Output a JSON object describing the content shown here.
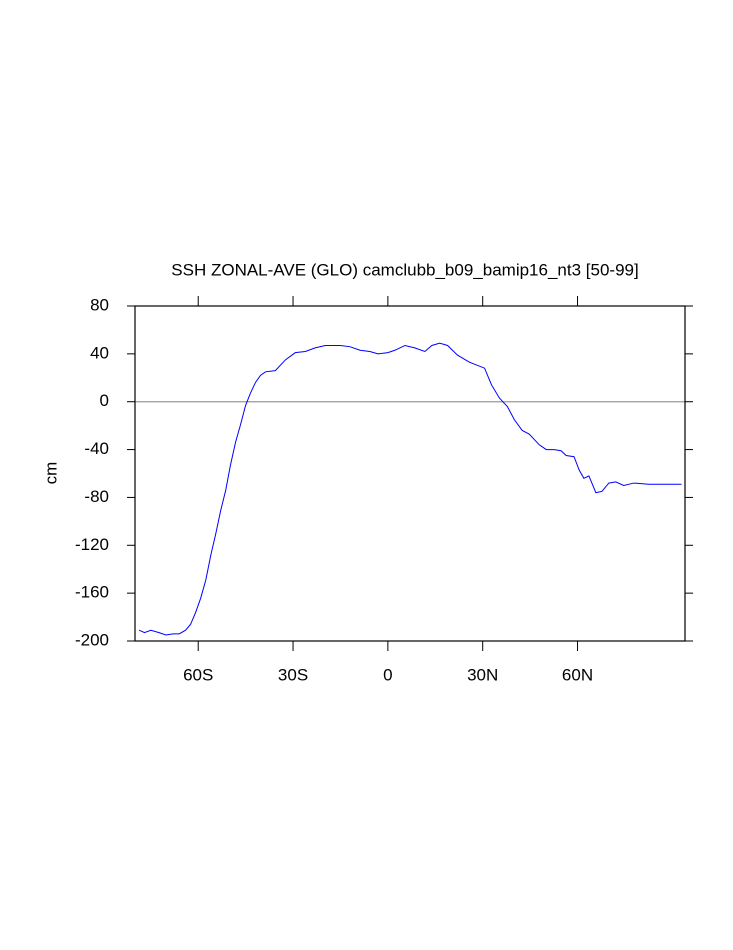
{
  "chart_data": {
    "type": "line",
    "title": "SSH ZONAL-AVE (GLO) camclubb_b09_bamip16_nt3 [50-99]",
    "ylabel": "cm",
    "x": [
      -78.7,
      -77,
      -75,
      -72.4,
      -70.2,
      -68,
      -66,
      -64,
      -62.4,
      -60.8,
      -59.2,
      -57.6,
      -56,
      -54.5,
      -52.9,
      -51.3,
      -49.8,
      -48.2,
      -46.6,
      -45,
      -43.5,
      -41.9,
      -40.3,
      -38.7,
      -35.6,
      -32.4,
      -29.3,
      -26.1,
      -23,
      -19.8,
      -15.1,
      -12,
      -8.8,
      -5.7,
      -3.1,
      0,
      2.2,
      5.4,
      8.5,
      11.7,
      13.9,
      16.4,
      18.9,
      22,
      25.8,
      30.6,
      32.8,
      35.3,
      37.8,
      40,
      42.5,
      44.7,
      47.9,
      50.1,
      52.6,
      54.8,
      56.4,
      58.9,
      60.5,
      62,
      63.6,
      65.8,
      67.7,
      69.9,
      72.1,
      74.6,
      77.8,
      82.5,
      88.8,
      92.9
    ],
    "series": [
      {
        "color": "#0000ff",
        "values": [
          -191,
          -193,
          -191,
          -193,
          -195,
          -194,
          -194,
          -191,
          -186,
          -176,
          -164,
          -149,
          -128,
          -111,
          -91,
          -74,
          -53,
          -34,
          -19,
          -3,
          7,
          16,
          22,
          25,
          26,
          35,
          41,
          42,
          45,
          47,
          47,
          46,
          43,
          42,
          40,
          41,
          43,
          47,
          45,
          42,
          47,
          49,
          47,
          39,
          33,
          28,
          14,
          3,
          -4,
          -15,
          -24,
          -27,
          -36,
          -40,
          -40,
          -41,
          -45,
          -46,
          -57,
          -64,
          -62,
          -76,
          -75,
          -68,
          -67,
          -70,
          -68,
          -69,
          -69,
          -69
        ]
      }
    ],
    "xlim": [
      -80,
      94
    ],
    "ylim": [
      -200,
      80
    ],
    "xticks": [
      {
        "value": -60,
        "label": "60S"
      },
      {
        "value": -30,
        "label": "30S"
      },
      0,
      {
        "value": 30,
        "label": "30N"
      },
      {
        "value": 60,
        "label": "60N"
      }
    ],
    "yticks": [
      -200,
      -160,
      -120,
      -80,
      -40,
      0,
      40,
      80
    ],
    "hline": 0,
    "hline_color": "#999999"
  }
}
